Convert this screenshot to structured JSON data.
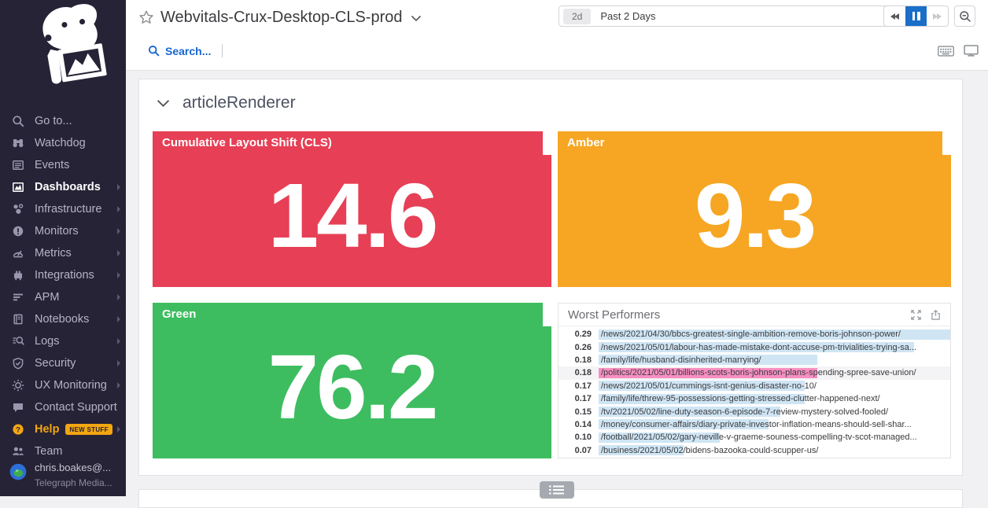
{
  "sidebar": {
    "items": [
      {
        "label": "Go to...",
        "icon": "search-icon"
      },
      {
        "label": "Watchdog",
        "icon": "binoculars-icon"
      },
      {
        "label": "Events",
        "icon": "events-icon"
      },
      {
        "label": "Dashboards",
        "icon": "dashboards-icon",
        "active": true,
        "arrow": true
      },
      {
        "label": "Infrastructure",
        "icon": "infrastructure-icon",
        "arrow": true
      },
      {
        "label": "Monitors",
        "icon": "monitors-icon",
        "arrow": true
      },
      {
        "label": "Metrics",
        "icon": "metrics-icon",
        "arrow": true
      },
      {
        "label": "Integrations",
        "icon": "integrations-icon",
        "arrow": true
      },
      {
        "label": "APM",
        "icon": "apm-icon",
        "arrow": true
      },
      {
        "label": "Notebooks",
        "icon": "notebooks-icon",
        "arrow": true
      },
      {
        "label": "Logs",
        "icon": "logs-icon",
        "arrow": true
      },
      {
        "label": "Security",
        "icon": "security-icon",
        "arrow": true
      },
      {
        "label": "UX Monitoring",
        "icon": "ux-monitoring-icon",
        "arrow": true
      },
      {
        "label": "Contact Support",
        "icon": "chat-icon"
      },
      {
        "label": "Help",
        "icon": "help-icon",
        "accent": true,
        "badge": "NEW STUFF",
        "arrow": true
      },
      {
        "label": "Team",
        "icon": "team-icon"
      }
    ],
    "user": {
      "name": "chris.boakes@...",
      "org": "Telegraph Media..."
    }
  },
  "header": {
    "title": "Webvitals-Crux-Desktop-CLS-prod",
    "search_label": "Search...",
    "time_range": {
      "badge": "2d",
      "label": "Past 2 Days"
    }
  },
  "dashboard": {
    "section_title": "articleRenderer",
    "tiles": [
      {
        "title": "Cumulative Layout Shift (CLS)",
        "value": "14.6",
        "color": "#e73f55"
      },
      {
        "title": "Amber",
        "value": "9.3",
        "color": "#f6a623"
      },
      {
        "title": "Green",
        "value": "76.2",
        "color": "#3dbd5f"
      }
    ],
    "worst_performers": {
      "title": "Worst Performers",
      "bar_colors": {
        "blue": "#cfe5f4",
        "pink": "#f78fc2"
      },
      "max_value": 0.29,
      "rows": [
        {
          "value": "0.29",
          "url": "/news/2021/04/30/bbcs-greatest-single-ambition-remove-boris-johnson-power/",
          "bar": "blue"
        },
        {
          "value": "0.26",
          "url": "/news/2021/05/01/labour-has-made-mistake-dont-accuse-pm-trivialities-trying-sa...",
          "bar": "blue"
        },
        {
          "value": "0.18",
          "url": "/family/life/husband-disinherited-marrying/",
          "bar": "blue"
        },
        {
          "value": "0.18",
          "url": "/politics/2021/05/01/billions-scots-boris-johnson-plans-spending-spree-save-union/",
          "bar": "pink",
          "highlighted": true
        },
        {
          "value": "0.17",
          "url": "/news/2021/05/01/cummings-isnt-genius-disaster-no-10/",
          "bar": "blue"
        },
        {
          "value": "0.17",
          "url": "/family/life/threw-95-possessions-getting-stressed-clutter-happened-next/",
          "bar": "blue"
        },
        {
          "value": "0.15",
          "url": "/tv/2021/05/02/line-duty-season-6-episode-7-review-mystery-solved-fooled/",
          "bar": "blue"
        },
        {
          "value": "0.14",
          "url": "/money/consumer-affairs/diary-private-investor-inflation-means-should-sell-shar...",
          "bar": "blue"
        },
        {
          "value": "0.10",
          "url": "/football/2021/05/02/gary-neville-v-graeme-souness-compelling-tv-scot-managed...",
          "bar": "blue"
        },
        {
          "value": "0.07",
          "url": "/business/2021/05/02/bidens-bazooka-could-scupper-us/",
          "bar": "blue"
        }
      ]
    }
  }
}
